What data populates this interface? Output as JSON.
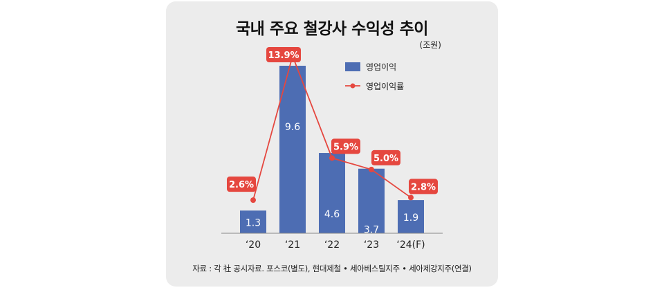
{
  "chart_data": {
    "type": "bar",
    "title": "국내 주요 철강사 수익성 추이",
    "unit": "(조원)",
    "categories": [
      "‘20",
      "‘21",
      "‘22",
      "‘23",
      "‘24(F)"
    ],
    "series": [
      {
        "name": "영업이익",
        "type": "bar",
        "values": [
          1.3,
          9.6,
          4.6,
          3.7,
          1.9
        ],
        "labels": [
          "1.3",
          "9.6",
          "4.6",
          "3.7",
          "1.9"
        ]
      },
      {
        "name": "영업이익률",
        "type": "line",
        "values": [
          2.6,
          13.9,
          5.9,
          5.0,
          2.8
        ],
        "labels": [
          "2.6%",
          "13.9%",
          "5.9%",
          "5.0%",
          "2.8%"
        ]
      }
    ],
    "legend": "top-right",
    "source": "자료 : 각 社 공시자료. 포스코(별도), 현대제철 • 세아베스틸지주 • 세아제강지주(연결)",
    "colors": {
      "bar": "#4d6db3",
      "line": "#e5473f",
      "rate_label_bg": "#e5473f"
    }
  }
}
